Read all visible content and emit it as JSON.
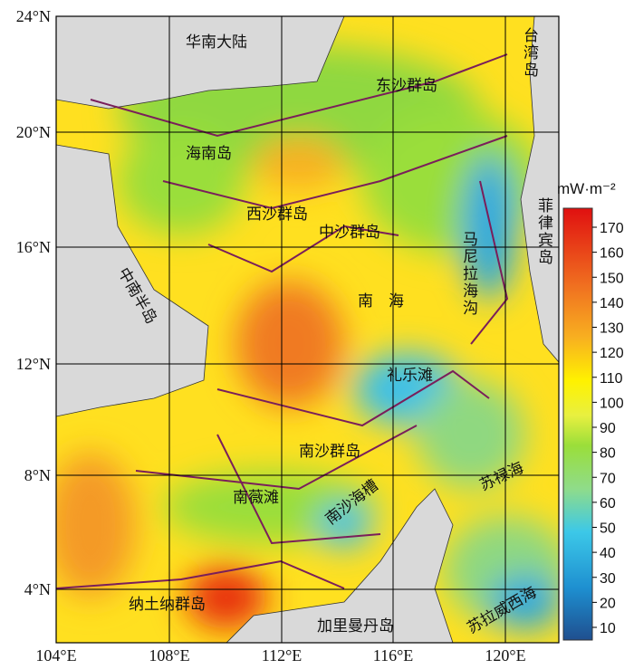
{
  "map": {
    "lat_labels": [
      "24°N",
      "20°N",
      "16°N",
      "12°N",
      "8°N",
      "4°N"
    ],
    "lon_labels": [
      "104°E",
      "108°E",
      "112°E",
      "116°E",
      "120°E"
    ],
    "places": [
      "华南大陆",
      "东沙群岛",
      "台湾岛",
      "海南岛",
      "西沙群岛",
      "中沙群岛",
      "菲律宾岛",
      "马尼拉海沟",
      "中南半岛",
      "南　海",
      "礼乐滩",
      "南沙群岛",
      "南薇滩",
      "南沙海槽",
      "苏禄海",
      "纳土纳群岛",
      "加里曼丹岛",
      "苏拉威西海"
    ],
    "colorbar": {
      "unit": "mW·m⁻²",
      "ticks": [
        10,
        20,
        30,
        40,
        50,
        60,
        70,
        80,
        90,
        100,
        110,
        120,
        130,
        140,
        150,
        160,
        170
      ]
    }
  }
}
